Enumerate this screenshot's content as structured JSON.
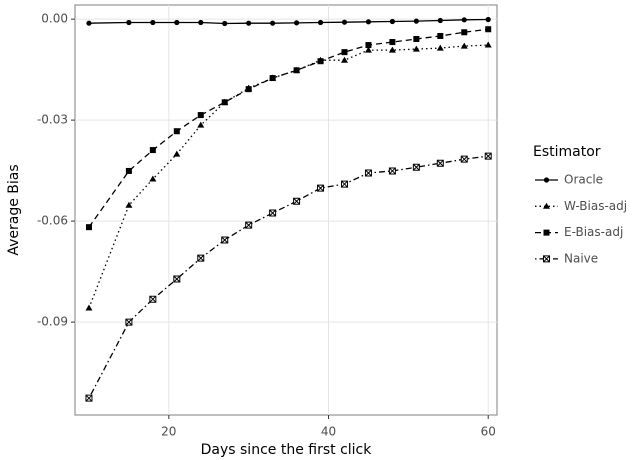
{
  "chart_data": {
    "type": "line",
    "xlabel": "Days since the first click",
    "ylabel": "Average Bias",
    "legend_title": "Estimator",
    "legend": "right",
    "grid": true,
    "x": [
      10,
      15,
      18,
      21,
      24,
      27,
      30,
      33,
      36,
      39,
      42,
      45,
      48,
      51,
      54,
      57,
      60
    ],
    "xlim": [
      8.25,
      61.1
    ],
    "xticks": [
      20,
      40,
      60
    ],
    "ylim": [
      -0.1176,
      0.0042
    ],
    "yticks": [
      {
        "value": 0,
        "label": "0.00"
      },
      {
        "value": -0.03,
        "label": "-0.03"
      },
      {
        "value": -0.06,
        "label": "-0.06"
      },
      {
        "value": -0.09,
        "label": "-0.09"
      }
    ],
    "series": [
      {
        "name": "Oracle",
        "color": "#000000",
        "linestyle": "solid",
        "marker": "circle",
        "values": [
          -0.0012,
          -0.001,
          -0.001,
          -0.001,
          -0.001,
          -0.0013,
          -0.0012,
          -0.0012,
          -0.0011,
          -0.001,
          -0.0009,
          -0.0008,
          -0.0007,
          -0.0006,
          -0.0004,
          -0.0002,
          -0.0001
        ]
      },
      {
        "name": "W-Bias-adj",
        "color": "#000000",
        "linestyle": "dotted",
        "marker": "triangle",
        "values": [
          -0.0858,
          -0.0553,
          -0.0475,
          -0.0401,
          -0.0315,
          -0.0247,
          -0.0205,
          -0.0175,
          -0.0152,
          -0.0122,
          -0.0122,
          -0.0092,
          -0.0092,
          -0.0089,
          -0.0086,
          -0.008,
          -0.0077
        ]
      },
      {
        "name": "E-Bias-adj",
        "color": "#000000",
        "linestyle": "dashed",
        "marker": "square",
        "values": [
          -0.0618,
          -0.0451,
          -0.0389,
          -0.0333,
          -0.0285,
          -0.0247,
          -0.0208,
          -0.0175,
          -0.0152,
          -0.0125,
          -0.0098,
          -0.0077,
          -0.0068,
          -0.0059,
          -0.005,
          -0.0039,
          -0.003
        ]
      },
      {
        "name": "Naive",
        "color": "#000000",
        "linestyle": "dotdash",
        "marker": "square-cross",
        "values": [
          -0.1126,
          -0.09,
          -0.0832,
          -0.0772,
          -0.071,
          -0.0656,
          -0.0612,
          -0.0576,
          -0.0541,
          -0.0502,
          -0.049,
          -0.0457,
          -0.0451,
          -0.044,
          -0.0428,
          -0.0416,
          -0.0407
        ]
      }
    ]
  }
}
